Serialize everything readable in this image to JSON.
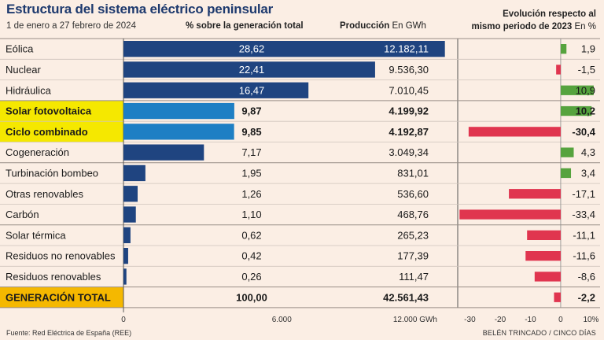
{
  "title": "Estructura del sistema eléctrico peninsular",
  "subtitle": "1 de enero a 27 febrero de 2024",
  "col_pct_label": "% sobre la generación total",
  "col_prod_label_bold": "Producción",
  "col_prod_unit": "En GWh",
  "col_evo_line1": "Evolución respecto al",
  "col_evo_line2_bold": "mismo periodo de 2023",
  "col_evo_unit": "En %",
  "footer_source": "Fuente:  Red Eléctrica de España (REE)",
  "footer_credit": "BELÉN TRINCADO / CINCO DÍAS",
  "chart_data": {
    "type": "bar",
    "categories": [
      "Eólica",
      "Nuclear",
      "Hidráulica",
      "Solar fotovoltaica",
      "Ciclo combinado",
      "Cogeneración",
      "Turbinación bombeo",
      "Otras renovables",
      "Carbón",
      "Solar térmica",
      "Residuos no renovables",
      "Residuos renovables",
      "GENERACIÓN TOTAL"
    ],
    "pct_labels": [
      "28,62",
      "22,41",
      "16,47",
      "9,87",
      "9,85",
      "7,17",
      "1,95",
      "1,26",
      "1,10",
      "0,62",
      "0,42",
      "0,26",
      "100,00"
    ],
    "production_gwh": [
      12182.11,
      9536.3,
      7010.45,
      4199.92,
      4192.87,
      3049.34,
      831.01,
      536.6,
      468.76,
      265.23,
      177.39,
      111.47,
      42561.43
    ],
    "production_labels": [
      "12.182,11",
      "9.536,30",
      "7.010,45",
      "4.199,92",
      "4.192,87",
      "3.049,34",
      "831,01",
      "536,60",
      "468,76",
      "265,23",
      "177,39",
      "111,47",
      "42.561,43"
    ],
    "evolution_pct": [
      1.9,
      -1.5,
      10.9,
      10.2,
      -30.4,
      4.3,
      3.4,
      -17.1,
      -33.4,
      -11.1,
      -11.6,
      -8.6,
      -2.2
    ],
    "evolution_labels": [
      "1,9",
      "-1,5",
      "10,9",
      "10,2",
      "-30,4",
      "4,3",
      "3,4",
      "-17,1",
      "-33,4",
      "-11,1",
      "-11,6",
      "-8,6",
      "-2,2"
    ],
    "highlighted": [
      false,
      false,
      false,
      true,
      true,
      false,
      false,
      false,
      false,
      false,
      false,
      false,
      true
    ],
    "bold_rows": [
      false,
      false,
      false,
      true,
      true,
      false,
      false,
      false,
      false,
      false,
      false,
      false,
      true
    ],
    "bar_style": [
      "dark",
      "dark",
      "dark",
      "light",
      "light",
      "dark",
      "dark",
      "dark",
      "dark",
      "dark",
      "dark",
      "dark",
      "none"
    ],
    "x_ticks": [
      0,
      6000,
      12000
    ],
    "x_tick_labels": [
      "0",
      "6.000",
      "12.000 GWh"
    ],
    "x_max": 12400,
    "evo_ticks": [
      -30,
      -20,
      -10,
      0,
      10
    ],
    "evo_tick_labels": [
      "-30",
      "-20",
      "-10",
      "0",
      "10%"
    ],
    "evo_range": [
      -34,
      13
    ],
    "colors": {
      "bar_dark": "#1f4480",
      "bar_light": "#1e7fc4",
      "highlight": "#f5e800",
      "total_highlight": "#f5b800",
      "evo_positive": "#56a33e",
      "evo_negative": "#e0354f",
      "title": "#1e3a6e"
    }
  }
}
